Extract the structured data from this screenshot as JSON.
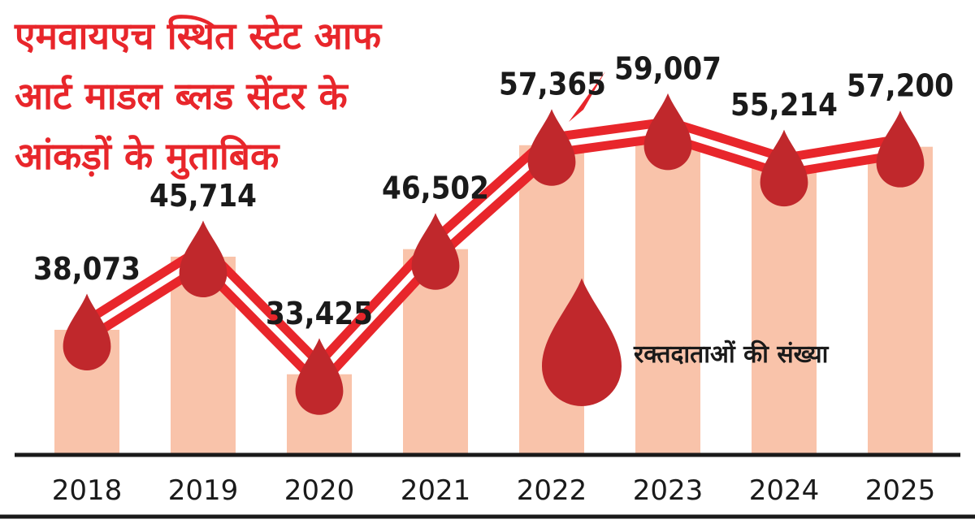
{
  "title_lines": [
    "एमवायएच स्थित स्टेट आफ",
    "आर्ट माडल ब्लड सेंटर के",
    "आंकड़ों के मुताबिक"
  ],
  "legend": {
    "label": "रक्तदाताओं की संख्या",
    "icon": "blood-drop-icon"
  },
  "colors": {
    "bar": "#f9c3aa",
    "line": "#e8262b",
    "drop": "#c0282c",
    "title": "#e8262b",
    "axis": "#1a1a1a"
  },
  "chart_data": {
    "type": "bar",
    "categories": [
      "2018",
      "2019",
      "2020",
      "2021",
      "2022",
      "2023",
      "2024",
      "2025"
    ],
    "values": [
      38073,
      45714,
      33425,
      46502,
      57365,
      59007,
      55214,
      57200
    ],
    "value_labels": [
      "38,073",
      "45,714",
      "33,425",
      "46,502",
      "57,365",
      "59,007",
      "55,214",
      "57,200"
    ],
    "overlay": "line with blood-drop markers",
    "title": "एमवायएच स्थित स्टेट आफ आर्ट माडल ब्लड सेंटर के आंकड़ों के मुताबिक",
    "legend_entry": "रक्तदाताओं की संख्या",
    "grid": false
  }
}
